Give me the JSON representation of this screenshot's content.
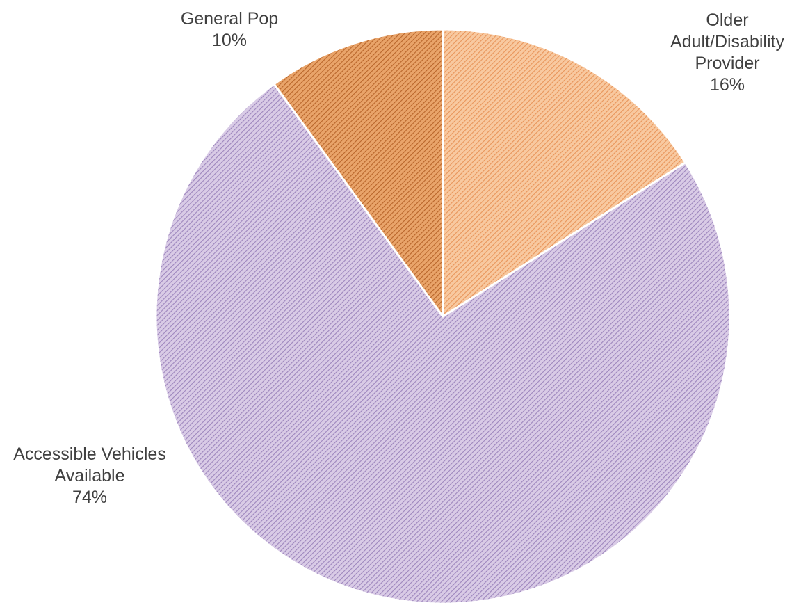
{
  "chart_data": {
    "type": "pie",
    "title": "",
    "slices": [
      {
        "label_lines": [
          "Older",
          "Adult/Disability",
          "Provider"
        ],
        "value": 16,
        "value_text": "16%",
        "color": "#f8c9a0",
        "hatch_color": "#e8955a"
      },
      {
        "label_lines": [
          "Accessible Vehicles",
          "Available"
        ],
        "value": 74,
        "value_text": "74%",
        "color": "#d9cbe6",
        "hatch_color": "#9d86bd"
      },
      {
        "label_lines": [
          "General Pop"
        ],
        "value": 10,
        "value_text": "10%",
        "color": "#e9a46a",
        "hatch_color": "#b8652a"
      }
    ],
    "start_angle_deg": 0,
    "direction": "clockwise",
    "pattern": "diagonal-hatch",
    "legend": "none"
  }
}
